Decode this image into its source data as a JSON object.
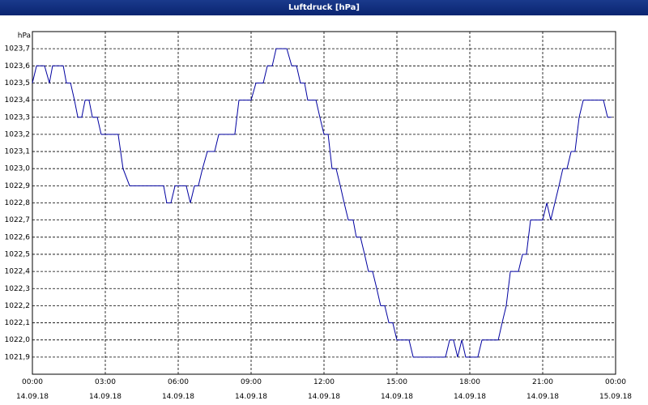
{
  "chart_data": {
    "type": "line",
    "title": "Luftdruck [hPa]",
    "y_label": "hPa",
    "x": [
      0,
      0.17,
      0.5,
      0.7,
      0.83,
      1.27,
      1.4,
      1.57,
      1.73,
      1.87,
      2.03,
      2.17,
      2.33,
      2.47,
      2.67,
      2.83,
      3.53,
      3.73,
      4,
      5.4,
      5.53,
      5.7,
      5.87,
      6.33,
      6.5,
      6.67,
      6.83,
      7,
      7.2,
      7.5,
      7.67,
      8.33,
      8.5,
      9,
      9.2,
      9.5,
      9.67,
      9.87,
      10.03,
      10.47,
      10.67,
      10.87,
      11.03,
      11.2,
      11.33,
      11.67,
      11.83,
      12,
      12.17,
      12.33,
      12.5,
      12.67,
      12.83,
      13,
      13.2,
      13.33,
      13.5,
      13.67,
      13.83,
      14,
      14.17,
      14.33,
      14.5,
      14.67,
      14.83,
      15,
      15.5,
      15.67,
      17,
      17.17,
      17.33,
      17.5,
      17.67,
      17.83,
      18.33,
      18.5,
      19.17,
      19.33,
      19.5,
      19.67,
      20,
      20.17,
      20.33,
      20.5,
      21,
      21.17,
      21.33,
      21.5,
      21.67,
      21.83,
      22,
      22.17,
      22.33,
      22.5,
      22.67,
      23.5,
      23.67,
      23.83
    ],
    "series": [
      {
        "name": "Luftdruck",
        "color": "#0000a0",
        "values": [
          1023.5,
          1023.6,
          1023.6,
          1023.5,
          1023.6,
          1023.6,
          1023.5,
          1023.5,
          1023.4,
          1023.3,
          1023.3,
          1023.4,
          1023.4,
          1023.3,
          1023.3,
          1023.2,
          1023.2,
          1023.0,
          1022.9,
          1022.9,
          1022.8,
          1022.8,
          1022.9,
          1022.9,
          1022.8,
          1022.9,
          1022.9,
          1023.0,
          1023.1,
          1023.1,
          1023.2,
          1023.2,
          1023.4,
          1023.4,
          1023.5,
          1023.5,
          1023.6,
          1023.6,
          1023.7,
          1023.7,
          1023.6,
          1023.6,
          1023.5,
          1023.5,
          1023.4,
          1023.4,
          1023.3,
          1023.2,
          1023.2,
          1023.0,
          1023.0,
          1022.9,
          1022.8,
          1022.7,
          1022.7,
          1022.6,
          1022.6,
          1022.5,
          1022.4,
          1022.4,
          1022.3,
          1022.2,
          1022.2,
          1022.1,
          1022.1,
          1022.0,
          1022.0,
          1021.9,
          1021.9,
          1022.0,
          1022.0,
          1021.9,
          1022.0,
          1021.9,
          1021.9,
          1022.0,
          1022.0,
          1022.1,
          1022.2,
          1022.4,
          1022.4,
          1022.5,
          1022.5,
          1022.7,
          1022.7,
          1022.8,
          1022.7,
          1022.8,
          1022.9,
          1023.0,
          1023.0,
          1023.1,
          1023.1,
          1023.3,
          1023.4,
          1023.4,
          1023.3,
          1023.3
        ]
      }
    ],
    "xlim": [
      0,
      24
    ],
    "xticks": [
      {
        "value": 0,
        "label": "00:00\n14.09.18"
      },
      {
        "value": 3,
        "label": "03:00\n14.09.18"
      },
      {
        "value": 6,
        "label": "06:00\n14.09.18"
      },
      {
        "value": 9,
        "label": "09:00\n14.09.18"
      },
      {
        "value": 12,
        "label": "12:00\n14.09.18"
      },
      {
        "value": 15,
        "label": "15:00\n14.09.18"
      },
      {
        "value": 18,
        "label": "18:00\n14.09.18"
      },
      {
        "value": 21,
        "label": "21:00\n14.09.18"
      },
      {
        "value": 24,
        "label": "00:00\n15.09.18"
      }
    ],
    "ylim": [
      1021.8,
      1023.8
    ],
    "yticks": [
      {
        "value": 1021.9,
        "label": "1021,9"
      },
      {
        "value": 1022.0,
        "label": "1022,0"
      },
      {
        "value": 1022.1,
        "label": "1022,1"
      },
      {
        "value": 1022.2,
        "label": "1022,2"
      },
      {
        "value": 1022.3,
        "label": "1022,3"
      },
      {
        "value": 1022.4,
        "label": "1022,4"
      },
      {
        "value": 1022.5,
        "label": "1022,5"
      },
      {
        "value": 1022.6,
        "label": "1022,6"
      },
      {
        "value": 1022.7,
        "label": "1022,7"
      },
      {
        "value": 1022.8,
        "label": "1022,8"
      },
      {
        "value": 1022.9,
        "label": "1022,9"
      },
      {
        "value": 1023.0,
        "label": "1023,0"
      },
      {
        "value": 1023.1,
        "label": "1023,1"
      },
      {
        "value": 1023.2,
        "label": "1023,2"
      },
      {
        "value": 1023.3,
        "label": "1023,3"
      },
      {
        "value": 1023.4,
        "label": "1023,4"
      },
      {
        "value": 1023.5,
        "label": "1023,5"
      },
      {
        "value": 1023.6,
        "label": "1023,6"
      },
      {
        "value": 1023.7,
        "label": "1023,7"
      }
    ],
    "grid": true
  }
}
